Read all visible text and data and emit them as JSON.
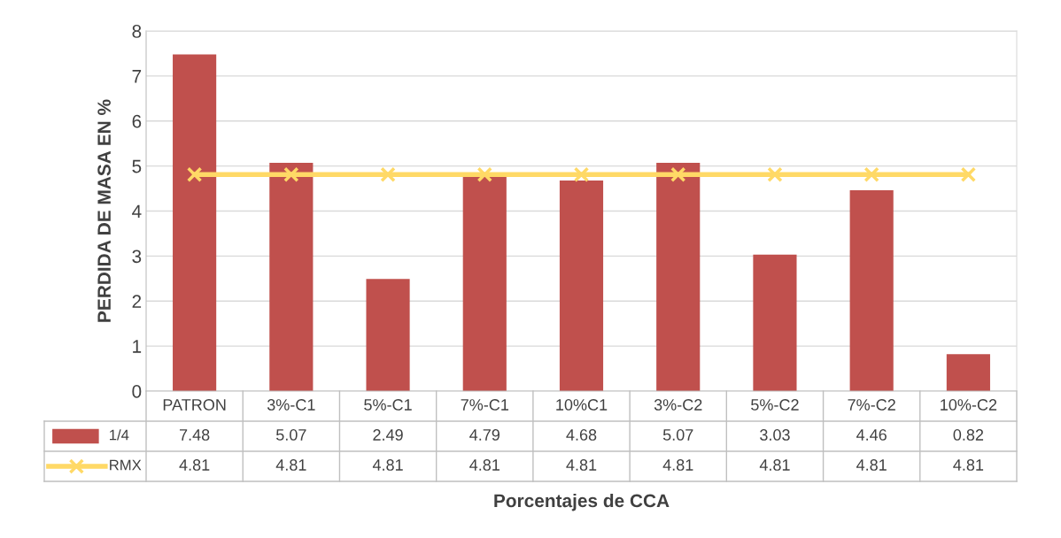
{
  "chart_data": {
    "type": "bar",
    "xlabel": "Porcentajes de CCA",
    "ylabel": "PERDIDA DE MASA EN %",
    "categories": [
      "PATRON",
      "3%-C1",
      "5%-C1",
      "7%-C1",
      "10%C1",
      "3%-C2",
      "5%-C2",
      "7%-C2",
      "10%-C2"
    ],
    "series": [
      {
        "name": "1/4",
        "color": "#c0504d",
        "values": [
          7.48,
          5.07,
          2.49,
          4.79,
          4.68,
          5.07,
          3.03,
          4.46,
          0.82
        ]
      },
      {
        "name": "RMX",
        "type": "line",
        "color": "#ffd966",
        "marker": "cross",
        "values": [
          4.81,
          4.81,
          4.81,
          4.81,
          4.81,
          4.81,
          4.81,
          4.81,
          4.81
        ]
      }
    ],
    "ylim": [
      0,
      8
    ],
    "yticks": [
      0,
      1,
      2,
      3,
      4,
      5,
      6,
      7,
      8
    ],
    "grid": "y",
    "data_labels": true,
    "legend": "bottom"
  }
}
